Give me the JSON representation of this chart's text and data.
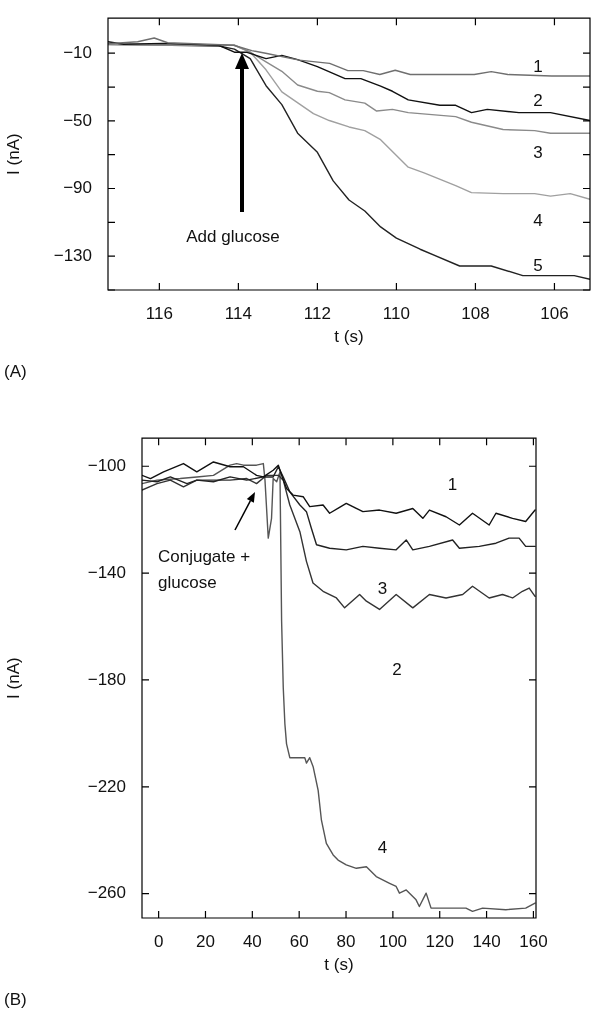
{
  "chart_data": [
    {
      "type": "line",
      "xlabel": "t (s)",
      "ylabel": "I (nA)",
      "xlim": [
        117.3,
        105.1
      ],
      "ylim": [
        -150,
        10.7
      ],
      "xticks": [
        116,
        114,
        112,
        110,
        108,
        106
      ],
      "yticks": [
        {
          "value": -150,
          "label": null
        },
        {
          "value": -130,
          "label": "−130"
        },
        {
          "value": -110,
          "label": null
        },
        {
          "value": -90,
          "label": "−90"
        },
        {
          "value": -70,
          "label": null
        },
        {
          "value": -50,
          "label": "−50"
        },
        {
          "value": -30,
          "label": null
        },
        {
          "value": -10,
          "label": "−10"
        }
      ],
      "series": [
        {
          "name": "1",
          "color": "#6f6f6f",
          "x": [
            117.3,
            116.55,
            116.13,
            115.79,
            114.12,
            113.66,
            113.31,
            112.46,
            111.69,
            111.23,
            110.84,
            110.42,
            110.03,
            109.65,
            108.03,
            107.6,
            107.18,
            106.07,
            105.1
          ],
          "values": [
            -4.4,
            -3.2,
            -1.0,
            -3.8,
            -5.3,
            -8.5,
            -10,
            -14.1,
            -16.0,
            -20.3,
            -20.3,
            -22.6,
            -20.1,
            -22.6,
            -22.6,
            -20.9,
            -22.6,
            -23.5,
            -23.5
          ]
        },
        {
          "name": "2",
          "color": "#111111",
          "x": [
            117.3,
            116.9,
            115.9,
            114.5,
            114.1,
            113.8,
            113.3,
            112.9,
            112.5,
            112.0,
            111.3,
            110.9,
            110.4,
            110.1,
            109.7,
            108.9,
            108.5,
            108.1,
            107.7,
            106.9,
            106.1,
            105.1
          ],
          "values": [
            -3.2,
            -4.7,
            -4.2,
            -5.3,
            -9.4,
            -9.4,
            -13.2,
            -11.3,
            -13.8,
            -17.9,
            -25.0,
            -25.0,
            -29.5,
            -32.5,
            -37.6,
            -40.8,
            -40.8,
            -45.1,
            -43.2,
            -45.1,
            -45.1,
            -49.8
          ]
        },
        {
          "name": "3",
          "color": "#8a8a8a",
          "x": [
            117.3,
            114.1,
            113.7,
            113.3,
            112.9,
            112.5,
            112.0,
            111.7,
            111.3,
            110.8,
            110.5,
            110.1,
            109.7,
            108.5,
            108.1,
            107.3,
            106.5,
            106.1,
            105.1
          ],
          "values": [
            -4.7,
            -5.3,
            -9.4,
            -15.1,
            -20.7,
            -28.8,
            -32.5,
            -33.3,
            -37.6,
            -39.5,
            -44.2,
            -43.2,
            -45.1,
            -47.5,
            -50.8,
            -55.1,
            -55.8,
            -57.3,
            -57.3
          ]
        },
        {
          "name": "4",
          "color": "#a0a0a0",
          "x": [
            117.3,
            114.1,
            113.7,
            113.3,
            112.9,
            112.1,
            111.7,
            111.2,
            110.8,
            110.4,
            109.7,
            109.3,
            108.5,
            108.1,
            107.3,
            106.5,
            106.1,
            105.6,
            105.1
          ],
          "values": [
            -5.1,
            -5.3,
            -9.4,
            -19.8,
            -32.9,
            -45.7,
            -49.8,
            -53.6,
            -55.8,
            -61.1,
            -77.4,
            -80.8,
            -88.3,
            -92.4,
            -93.0,
            -93.0,
            -94.5,
            -93.0,
            -96.4
          ]
        },
        {
          "name": "5",
          "color": "#222222",
          "x": [
            117.3,
            114.5,
            114.1,
            113.7,
            113.3,
            112.9,
            112.5,
            112.0,
            111.6,
            111.2,
            110.8,
            110.4,
            110.0,
            109.4,
            108.4,
            107.6,
            106.8,
            105.5,
            105.1
          ],
          "values": [
            -4.7,
            -5.7,
            -7.6,
            -13.2,
            -29.2,
            -40.4,
            -57.3,
            -68.6,
            -85.5,
            -96.8,
            -103.3,
            -112.7,
            -119.3,
            -125.9,
            -135.8,
            -135.8,
            -141.5,
            -141.5,
            -143.7
          ]
        }
      ],
      "annotations": [
        "Add glucose",
        "(A)"
      ]
    },
    {
      "type": "line",
      "xlabel": "t (s)",
      "ylabel": "I (nA)",
      "xlim": [
        -7.1,
        161.1
      ],
      "ylim": [
        -269.1,
        -89.5
      ],
      "xticks": [
        0,
        20,
        40,
        60,
        80,
        100,
        120,
        140,
        160
      ],
      "yticks": [
        {
          "value": -260,
          "label": "−260"
        },
        {
          "value": -220,
          "label": "−220"
        },
        {
          "value": -180,
          "label": "−180"
        },
        {
          "value": -140,
          "label": "−140"
        },
        {
          "value": -100,
          "label": "−100"
        }
      ],
      "series": [
        {
          "name": "1",
          "color": "#111111",
          "x": [
            -7.1,
            -3.5,
            2.1,
            10.6,
            16.3,
            23.4,
            30.5,
            36.2,
            41.8,
            44.7,
            48.9,
            51.1,
            52.5,
            54.6,
            57.4,
            61.7,
            64.5,
            70.2,
            73.0,
            80.1,
            87.2,
            94.3,
            101.4,
            108.5,
            112.8,
            115.6,
            122.7,
            128.4,
            134.0,
            141.1,
            144.0,
            151.1,
            156.7,
            160.7
          ],
          "values": [
            -103.4,
            -104.6,
            -102.1,
            -99.0,
            -102.1,
            -98.4,
            -100.2,
            -100.2,
            -103.4,
            -104.0,
            -101.5,
            -99.6,
            -103.4,
            -108.3,
            -110.8,
            -111.4,
            -115.1,
            -114.5,
            -117.6,
            -113.9,
            -117.0,
            -116.4,
            -117.6,
            -115.8,
            -119.5,
            -116.4,
            -118.9,
            -122.0,
            -117.6,
            -122.0,
            -117.6,
            -119.5,
            -120.7,
            -116.4
          ]
        },
        {
          "color": "#222222",
          "x": [
            -7.1,
            -0.7,
            5.0,
            12.1,
            16.3,
            23.4,
            30.5,
            37.6,
            44.7,
            48.9,
            51.1,
            53.2,
            56.0,
            60.3,
            63.1,
            65.2,
            67.4,
            73.0,
            80.1,
            87.2,
            94.3,
            101.4,
            105.7,
            108.5,
            115.6,
            125.5,
            128.4,
            136.9,
            144.0,
            149.6,
            153.9,
            156.7,
            160.7
          ],
          "values": [
            -105.2,
            -105.8,
            -104.0,
            -106.5,
            -105.2,
            -105.8,
            -104.0,
            -105.2,
            -104.0,
            -104.0,
            -100.2,
            -104.0,
            -109.6,
            -114.5,
            -117.0,
            -123.2,
            -129.4,
            -130.7,
            -131.3,
            -130.0,
            -130.7,
            -131.3,
            -127.6,
            -131.3,
            -130.0,
            -127.6,
            -130.7,
            -130.0,
            -128.8,
            -126.9,
            -126.9,
            -130.0,
            -130.0
          ]
        },
        {
          "name": "3",
          "color": "#333333",
          "x": [
            -7.1,
            -0.7,
            5.0,
            10.6,
            16.3,
            23.4,
            30.5,
            37.6,
            41.8,
            46.1,
            48.9,
            51.1,
            53.2,
            56.0,
            60.3,
            63.1,
            65.9,
            70.2,
            75.9,
            79.4,
            85.8,
            88.7,
            94.3,
            101.4,
            108.5,
            115.6,
            122.7,
            129.8,
            134.0,
            141.1,
            146.8,
            151.1,
            155.3,
            158.2,
            160.7
          ],
          "values": [
            -108.9,
            -106.5,
            -105.2,
            -107.7,
            -105.2,
            -105.2,
            -105.2,
            -104.6,
            -106.5,
            -103.4,
            -103.4,
            -103.4,
            -105.2,
            -114.5,
            -124.5,
            -135.6,
            -143.7,
            -146.8,
            -149.3,
            -153.0,
            -148.0,
            -150.5,
            -153.6,
            -148.0,
            -153.0,
            -148.0,
            -149.3,
            -148.0,
            -144.9,
            -149.3,
            -148.0,
            -149.3,
            -146.8,
            -145.6,
            -148.7
          ]
        },
        {
          "name": "4",
          "color": "#555555",
          "x": [
            -7.1,
            -0.7,
            9.2,
            16.3,
            23.4,
            30.5,
            33.3,
            36.2,
            41.8,
            44.7,
            45.4,
            46.8,
            48.2,
            48.9,
            50.4,
            51.8,
            52.5,
            53.2,
            53.9,
            54.6,
            56.0,
            62.4,
            63.1,
            64.5,
            66.0,
            68.1,
            69.5,
            71.6,
            74.5,
            76.6,
            80.1,
            84.4,
            88.7,
            92.9,
            98.6,
            101.4,
            102.8,
            105.7,
            109.9,
            111.3,
            114.2,
            116.3,
            119.9,
            131.2,
            134.0,
            138.3,
            148.2,
            156.7,
            160.7
          ],
          "values": [
            -106.5,
            -105.2,
            -104.6,
            -104.0,
            -103.4,
            -99.6,
            -99.0,
            -99.6,
            -99.6,
            -99.0,
            -105.2,
            -126.9,
            -119.5,
            -104.6,
            -105.8,
            -102.1,
            -158.0,
            -182.8,
            -196.5,
            -203.9,
            -209.1,
            -209.1,
            -211.1,
            -209.1,
            -212.6,
            -221.3,
            -232.5,
            -241.2,
            -245.5,
            -247.4,
            -249.2,
            -250.5,
            -249.9,
            -253.6,
            -256.1,
            -257.3,
            -259.8,
            -258.6,
            -262.3,
            -264.8,
            -259.8,
            -265.4,
            -265.4,
            -265.4,
            -266.6,
            -265.4,
            -266.0,
            -265.4,
            -263.5
          ]
        }
      ],
      "annotations": [
        "2",
        "Conjugate +\nglucose",
        "(B)"
      ]
    }
  ]
}
